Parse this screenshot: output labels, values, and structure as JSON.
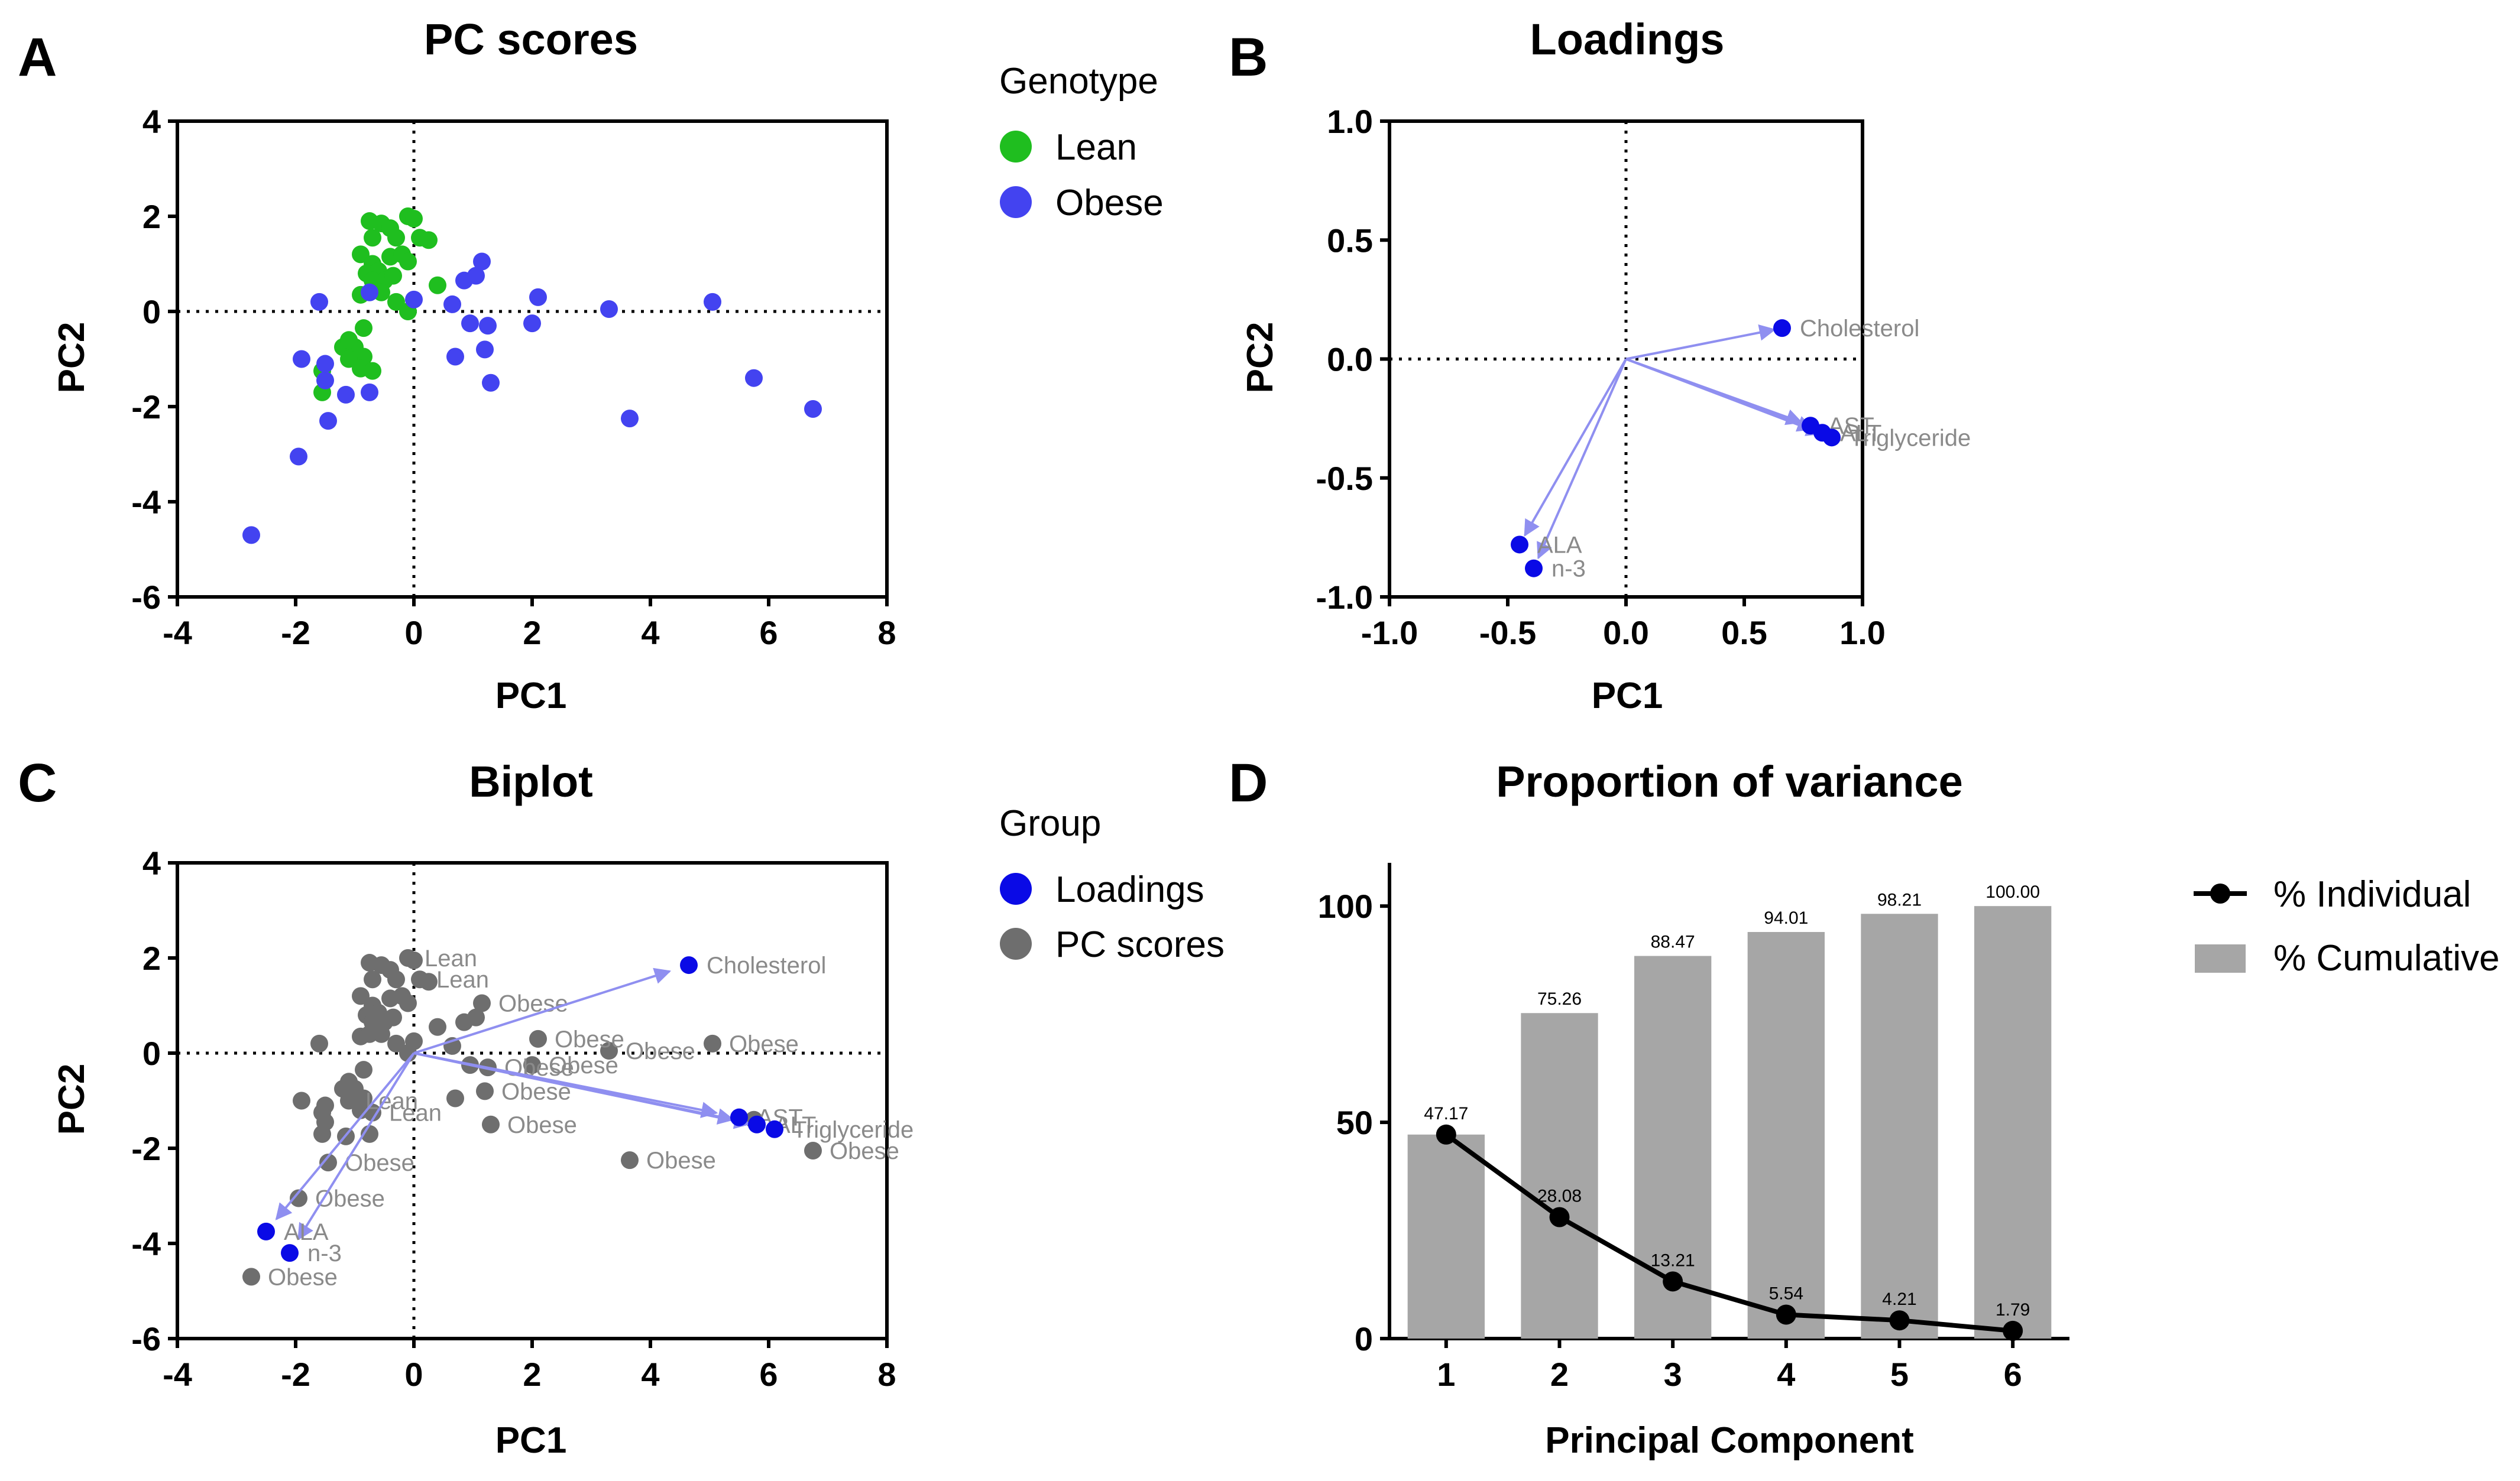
{
  "colors": {
    "lean": "#1FBE1F",
    "obese": "#4343F0",
    "loadings": "#0A0AE6",
    "pcscores": "#6E6E6E",
    "bars": "#A6A6A6",
    "arrow": "#8F8FF0",
    "annotation": "#8A8A8A",
    "line": "#000000"
  },
  "chart_data": [
    {
      "panel": "A",
      "type": "scatter",
      "title": "PC scores",
      "xlabel": "PC1",
      "ylabel": "PC2",
      "xlim": [
        -4,
        8
      ],
      "ylim": [
        -6,
        4
      ],
      "xticks": [
        "-4",
        "-2",
        "0",
        "2",
        "4",
        "6",
        "8"
      ],
      "yticks": [
        "-6",
        "-4",
        "-2",
        "0",
        "2",
        "4"
      ],
      "legend": {
        "title": "Genotype",
        "entries": [
          {
            "label": "Lean",
            "color_key": "lean"
          },
          {
            "label": "Obese",
            "color_key": "obese"
          }
        ]
      },
      "series": [
        {
          "name": "Lean",
          "color_key": "lean",
          "points": [
            [
              -0.75,
              1.9
            ],
            [
              -0.55,
              1.85
            ],
            [
              -0.4,
              1.75
            ],
            [
              -0.3,
              1.55
            ],
            [
              -0.7,
              1.55
            ],
            [
              -0.1,
              2.0
            ],
            [
              0.0,
              1.95
            ],
            [
              0.1,
              1.55
            ],
            [
              0.25,
              1.5
            ],
            [
              -0.9,
              1.2
            ],
            [
              -0.7,
              1.0
            ],
            [
              -0.8,
              0.8
            ],
            [
              -0.6,
              0.85
            ],
            [
              -0.5,
              0.65
            ],
            [
              -0.35,
              0.75
            ],
            [
              -0.4,
              1.15
            ],
            [
              -0.2,
              1.2
            ],
            [
              -0.1,
              1.05
            ],
            [
              -0.7,
              0.65
            ],
            [
              -0.55,
              0.4
            ],
            [
              -0.9,
              0.35
            ],
            [
              -0.3,
              0.2
            ],
            [
              0.4,
              0.55
            ],
            [
              -0.1,
              0.0
            ],
            [
              -0.85,
              -0.35
            ],
            [
              -1.0,
              -0.75
            ],
            [
              -1.2,
              -0.75
            ],
            [
              -0.85,
              -0.95
            ],
            [
              -1.1,
              -1.0
            ],
            [
              -0.9,
              -1.2
            ],
            [
              -0.7,
              -1.25
            ],
            [
              -1.55,
              -1.25
            ],
            [
              -1.55,
              -1.7
            ],
            [
              -1.1,
              -0.6
            ]
          ]
        },
        {
          "name": "Obese",
          "color_key": "obese",
          "points": [
            [
              -1.6,
              0.2
            ],
            [
              -0.75,
              0.4
            ],
            [
              0.0,
              0.25
            ],
            [
              0.65,
              0.15
            ],
            [
              0.85,
              0.65
            ],
            [
              1.05,
              0.75
            ],
            [
              1.15,
              1.05
            ],
            [
              0.95,
              -0.25
            ],
            [
              1.25,
              -0.3
            ],
            [
              0.7,
              -0.95
            ],
            [
              1.2,
              -0.8
            ],
            [
              1.3,
              -1.5
            ],
            [
              2.0,
              -0.25
            ],
            [
              2.1,
              0.3
            ],
            [
              3.3,
              0.05
            ],
            [
              5.05,
              0.2
            ],
            [
              5.75,
              -1.4
            ],
            [
              6.75,
              -2.05
            ],
            [
              3.65,
              -2.25
            ],
            [
              -1.5,
              -1.45
            ],
            [
              -1.15,
              -1.75
            ],
            [
              -0.75,
              -1.7
            ],
            [
              -1.45,
              -2.3
            ],
            [
              -1.5,
              -1.1
            ],
            [
              -1.9,
              -1.0
            ],
            [
              -1.95,
              -3.05
            ],
            [
              -2.75,
              -4.7
            ]
          ]
        }
      ]
    },
    {
      "panel": "B",
      "type": "scatter",
      "title": "Loadings",
      "xlabel": "PC1",
      "ylabel": "PC2",
      "xlim": [
        -1.0,
        1.0
      ],
      "ylim": [
        -1.0,
        1.0
      ],
      "xticks": [
        "-1.0",
        "-0.5",
        "0.0",
        "0.5",
        "1.0"
      ],
      "yticks": [
        "-1.0",
        "-0.5",
        "0.0",
        "0.5",
        "1.0"
      ],
      "points": [
        {
          "label": "Cholesterol",
          "x": 0.66,
          "y": 0.13
        },
        {
          "label": "AST",
          "x": 0.78,
          "y": -0.28
        },
        {
          "label": "ALT",
          "x": 0.83,
          "y": -0.31
        },
        {
          "label": "Triglyceride",
          "x": 0.87,
          "y": -0.33
        },
        {
          "label": "ALA",
          "x": -0.45,
          "y": -0.78
        },
        {
          "label": "n-3",
          "x": -0.39,
          "y": -0.88
        }
      ]
    },
    {
      "panel": "C",
      "type": "scatter",
      "title": "Biplot",
      "xlabel": "PC1",
      "ylabel": "PC2",
      "xlim": [
        -4,
        8
      ],
      "ylim": [
        -6,
        4
      ],
      "xticks": [
        "-4",
        "-2",
        "0",
        "2",
        "4",
        "6",
        "8"
      ],
      "yticks": [
        "-6",
        "-4",
        "-2",
        "0",
        "2",
        "4"
      ],
      "legend": {
        "title": "Group",
        "entries": [
          {
            "label": "Loadings",
            "color_key": "loadings"
          },
          {
            "label": "PC scores",
            "color_key": "pcscores"
          }
        ]
      },
      "loadings": [
        {
          "label": "Cholesterol",
          "x": 4.65,
          "y": 1.85
        },
        {
          "label": "AST",
          "x": 5.5,
          "y": -1.35
        },
        {
          "label": "ALT",
          "x": 5.8,
          "y": -1.5
        },
        {
          "label": "Triglyceride",
          "x": 6.1,
          "y": -1.6
        },
        {
          "label": "ALA",
          "x": -2.5,
          "y": -3.75
        },
        {
          "label": "n-3",
          "x": -2.1,
          "y": -4.2
        }
      ],
      "score_labels": [
        {
          "label": "Obese",
          "x": 3.3,
          "y": 0.05
        },
        {
          "label": "Obese",
          "x": 5.05,
          "y": 0.2
        },
        {
          "label": "Obese",
          "x": 6.75,
          "y": -2.05
        },
        {
          "label": "Obese",
          "x": 3.65,
          "y": -2.25
        },
        {
          "label": "Obese",
          "x": 2.1,
          "y": 0.3
        },
        {
          "label": "Obese",
          "x": 1.3,
          "y": -1.5
        },
        {
          "label": "Obese",
          "x": 1.2,
          "y": -0.8
        },
        {
          "label": "Obese",
          "x": 1.25,
          "y": -0.3
        },
        {
          "label": "Obese",
          "x": 1.15,
          "y": 1.05
        },
        {
          "label": "Obese",
          "x": 2.0,
          "y": -0.25
        },
        {
          "label": "Obese",
          "x": -1.45,
          "y": -2.3
        },
        {
          "label": "Obese",
          "x": -1.95,
          "y": -3.05
        },
        {
          "label": "Obese",
          "x": -2.75,
          "y": -4.7
        },
        {
          "label": "Lean",
          "x": -0.1,
          "y": 2.0
        },
        {
          "label": "Lean",
          "x": 0.1,
          "y": 1.55
        },
        {
          "label": "Lean",
          "x": -0.7,
          "y": -1.25
        },
        {
          "label": "Lean",
          "x": -1.1,
          "y": -1.0
        }
      ]
    },
    {
      "panel": "D",
      "type": "bar",
      "title": "Proportion of variance",
      "xlabel": "Principal Component",
      "ylabel": "",
      "ylim": [
        0,
        110
      ],
      "categories": [
        "1",
        "2",
        "3",
        "4",
        "5",
        "6"
      ],
      "yticks": [
        "0",
        "50",
        "100"
      ],
      "legend": {
        "entries": [
          {
            "label": "% Individual",
            "kind": "line"
          },
          {
            "label": "% Cumulative",
            "kind": "bar"
          }
        ]
      },
      "series": [
        {
          "name": "% Cumulative",
          "type": "bar",
          "values": [
            47.17,
            75.26,
            88.47,
            94.01,
            98.21,
            100.0
          ],
          "labels": [
            "",
            "75.26",
            "88.47",
            "94.01",
            "98.21",
            "100.00"
          ]
        },
        {
          "name": "% Individual",
          "type": "line",
          "values": [
            47.17,
            28.08,
            13.21,
            5.54,
            4.21,
            1.79
          ],
          "labels": [
            "47.17",
            "28.08",
            "13.21",
            "5.54",
            "4.21",
            "1.79"
          ]
        }
      ]
    }
  ]
}
